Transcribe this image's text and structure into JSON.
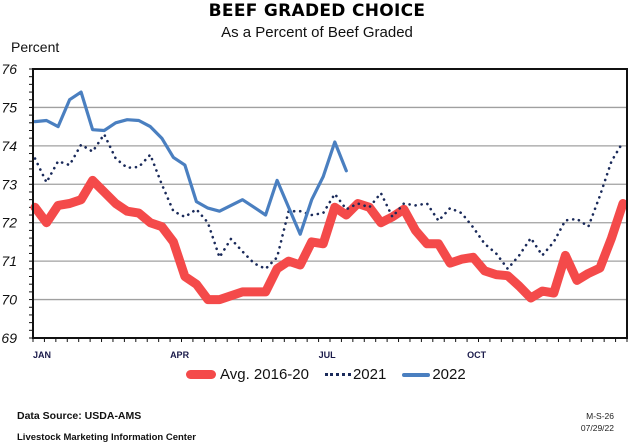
{
  "chart_data": {
    "type": "line",
    "title": "BEEF GRADED CHOICE",
    "subtitle": "As a Percent of Beef Graded",
    "ylabel": "Percent",
    "xlabel": "",
    "ylim": [
      69,
      76
    ],
    "yticks": [
      "69",
      "70",
      "71",
      "72",
      "73",
      "74",
      "75",
      "76"
    ],
    "x_unit": "week of year (1-52)",
    "xtick_labels": [
      {
        "week": 1,
        "label": "JAN"
      },
      {
        "week": 13,
        "label": "APR"
      },
      {
        "week": 26,
        "label": "JUL"
      },
      {
        "week": 39,
        "label": "OCT"
      }
    ],
    "grid": "horizontal",
    "legend_position": "bottom",
    "series": [
      {
        "name": "Avg. 2016-20",
        "color": "#f44a4a",
        "style": "thick-solid",
        "values": [
          72.4,
          72.0,
          72.45,
          72.5,
          72.6,
          73.1,
          72.8,
          72.5,
          72.3,
          72.25,
          72.0,
          71.9,
          71.5,
          70.6,
          70.4,
          70.0,
          70.0,
          70.1,
          70.2,
          70.2,
          70.2,
          70.8,
          71.0,
          70.9,
          71.5,
          71.45,
          72.4,
          72.2,
          72.5,
          72.4,
          72.0,
          72.15,
          72.35,
          71.8,
          71.45,
          71.45,
          70.95,
          71.05,
          71.1,
          70.75,
          70.65,
          70.62,
          70.35,
          70.04,
          70.22,
          70.17,
          71.15,
          70.5,
          70.68,
          70.82,
          71.6,
          72.5
        ]
      },
      {
        "name": "2021",
        "color": "#1a2a5a",
        "style": "dotted",
        "values": [
          73.67,
          73.05,
          73.6,
          73.5,
          74.03,
          73.85,
          74.3,
          73.67,
          73.43,
          73.45,
          73.77,
          73.0,
          72.3,
          72.15,
          72.35,
          72.0,
          71.1,
          71.58,
          71.25,
          70.94,
          70.8,
          71.1,
          72.3,
          72.3,
          72.2,
          72.25,
          72.75,
          72.35,
          72.5,
          72.4,
          72.77,
          72.15,
          72.5,
          72.45,
          72.5,
          72.05,
          72.38,
          72.25,
          71.88,
          71.45,
          71.2,
          70.8,
          71.15,
          71.6,
          71.15,
          71.5,
          72.06,
          72.1,
          71.9,
          72.7,
          73.6,
          74.1
        ]
      },
      {
        "name": "2022",
        "color": "#4a7fc0",
        "style": "solid",
        "values": [
          74.63,
          74.66,
          74.5,
          75.2,
          75.4,
          74.42,
          74.4,
          74.6,
          74.68,
          74.66,
          74.5,
          74.2,
          73.7,
          73.5,
          72.55,
          72.38,
          72.3,
          72.45,
          72.6,
          72.4,
          72.2,
          73.1,
          72.4,
          71.7,
          72.6,
          73.2,
          74.1,
          73.35
        ]
      }
    ]
  },
  "footer": {
    "source": "Data Source:  USDA-AMS",
    "center": "Livestock Marketing Information Center",
    "code": "M-S-26",
    "date": "07/29/22"
  }
}
